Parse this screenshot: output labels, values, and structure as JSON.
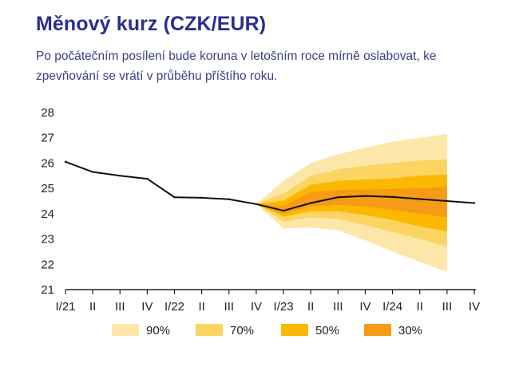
{
  "title": "Měnový kurz (CZK/EUR)",
  "subtitle": "Po počátečním posílení bude koruna v letošním roce mírně oslabovat, ke zpevňování se vrátí v průběhu příštího roku.",
  "chart_data": {
    "type": "line",
    "subtype": "fan-chart",
    "title": "Měnový kurz (CZK/EUR)",
    "xlabel": "",
    "ylabel": "",
    "ylim": [
      21,
      28
    ],
    "yticks": [
      21,
      22,
      23,
      24,
      25,
      26,
      27,
      28
    ],
    "categories": [
      "I/21",
      "II",
      "III",
      "IV",
      "I/22",
      "II",
      "III",
      "IV",
      "I/23",
      "II",
      "III",
      "IV",
      "I/24",
      "II",
      "III",
      "IV"
    ],
    "series": [
      {
        "name": "CZK/EUR",
        "color": "#111111",
        "values": [
          26.05,
          25.65,
          25.5,
          25.38,
          24.65,
          24.63,
          24.57,
          24.38,
          24.12,
          24.42,
          24.65,
          24.7,
          24.66,
          24.58,
          24.5,
          24.42
        ]
      }
    ],
    "bands": [
      {
        "name": "90%",
        "label": "90%",
        "color": "#fde7a8",
        "lower": [
          24.38,
          23.42,
          23.45,
          23.35,
          22.95,
          22.5,
          22.1,
          21.7
        ],
        "upper": [
          24.38,
          25.3,
          26.0,
          26.35,
          26.6,
          26.85,
          27.0,
          27.15
        ]
      },
      {
        "name": "70%",
        "label": "70%",
        "color": "#fcd462",
        "lower": [
          24.38,
          23.68,
          23.85,
          23.8,
          23.55,
          23.28,
          23.0,
          22.7
        ],
        "upper": [
          24.38,
          24.8,
          25.5,
          25.75,
          25.9,
          26.0,
          26.1,
          26.15
        ]
      },
      {
        "name": "50%",
        "label": "50%",
        "color": "#fbb800",
        "lower": [
          24.38,
          23.88,
          24.1,
          24.1,
          23.95,
          23.75,
          23.5,
          23.3
        ],
        "upper": [
          24.38,
          24.52,
          25.15,
          25.3,
          25.35,
          25.4,
          25.5,
          25.55
        ]
      },
      {
        "name": "30%",
        "label": "30%",
        "color": "#f79b16",
        "lower": [
          24.38,
          23.98,
          24.3,
          24.35,
          24.28,
          24.15,
          24.0,
          23.85
        ],
        "upper": [
          24.38,
          24.3,
          24.85,
          24.95,
          24.95,
          24.98,
          25.02,
          25.05
        ]
      }
    ],
    "band_start_index": 7,
    "legend": {
      "position": "bottom"
    },
    "grid": false
  }
}
